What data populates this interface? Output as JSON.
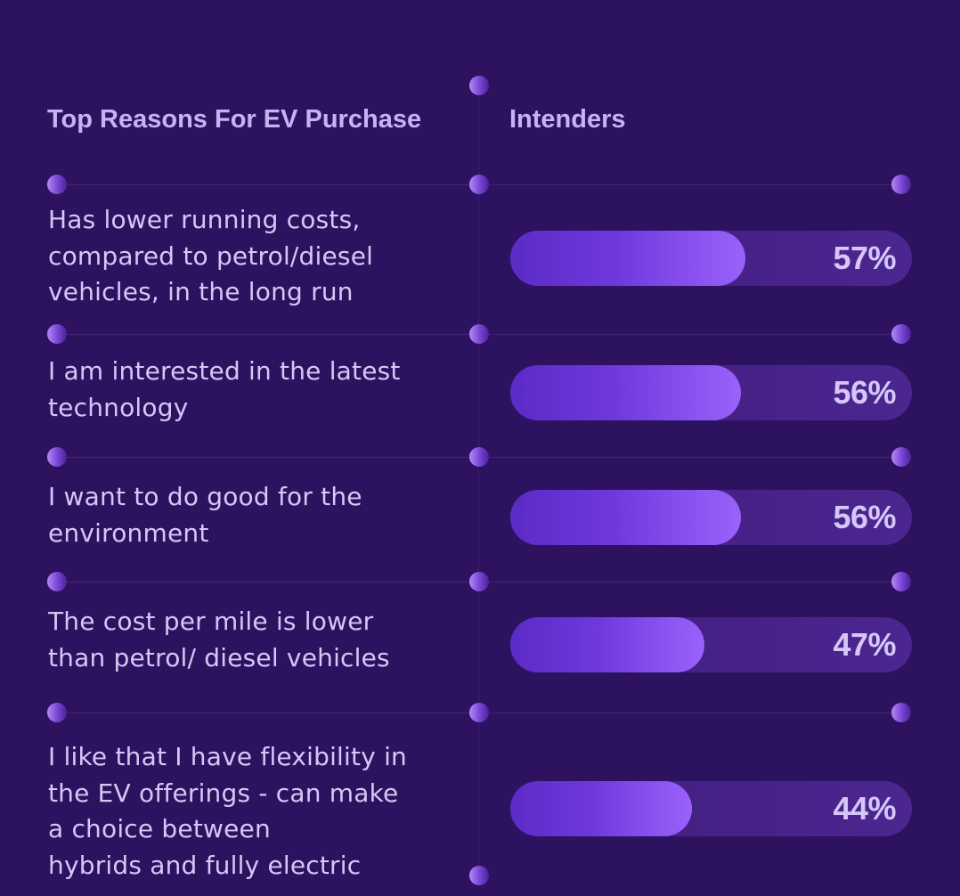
{
  "chart_data": {
    "type": "bar",
    "orientation": "horizontal",
    "category_header": "Top Reasons For EV Purchase",
    "series": [
      {
        "name": "Intenders",
        "values": [
          57,
          56,
          56,
          47,
          44
        ]
      }
    ],
    "categories": [
      [
        "Has lower running costs,",
        "compared to petrol/diesel",
        "vehicles, in the long run"
      ],
      [
        "I am interested in the latest",
        "technology"
      ],
      [
        "I want to do good for the",
        "environment"
      ],
      [
        "The cost per mile is lower",
        "than petrol/ diesel vehicles"
      ],
      [
        "I like that I have flexibility in",
        "the EV offerings - can make",
        "a choice between",
        "hybrids and fully electric"
      ]
    ],
    "value_labels": [
      "57%",
      "56%",
      "56%",
      "47%",
      "44%"
    ],
    "xlim": [
      0,
      100
    ],
    "unit": "%",
    "colors": {
      "background": "#2d1260",
      "bar_fill_start": "#5b2bc6",
      "bar_fill_end": "#9a62fb",
      "bar_track": "#45218a",
      "text": "#d8c6f6",
      "header": "#c9b1f5"
    }
  }
}
